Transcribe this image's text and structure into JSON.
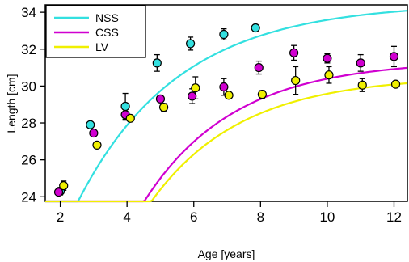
{
  "chart_data": {
    "type": "scatter",
    "xlabel": "Age [years]",
    "ylabel": "Length [cm]",
    "xlim": [
      1.55,
      12.4
    ],
    "ylim": [
      23.75,
      34.4
    ],
    "xticks": [
      2,
      4,
      6,
      8,
      10,
      12
    ],
    "yticks": [
      24,
      26,
      28,
      30,
      32,
      34
    ],
    "grid": false,
    "legend": {
      "placement": "top-left",
      "entries": [
        "NSS",
        "CSS",
        "LV"
      ]
    },
    "series": [
      {
        "name": "NSS",
        "color": "#33E0E0",
        "curve": {
          "model": "von Bertalanffy",
          "Linf": 34.5,
          "K": 0.33,
          "t0": -1.0
        },
        "points": [
          {
            "x": 2.0,
            "y": 24.3,
            "err": 0.2
          },
          {
            "x": 2.9,
            "y": 27.9,
            "err": 0.1
          },
          {
            "x": 3.95,
            "y": 28.9,
            "err": 0.7
          },
          {
            "x": 4.9,
            "y": 31.25,
            "err": 0.45
          },
          {
            "x": 5.9,
            "y": 32.3,
            "err": 0.35
          },
          {
            "x": 6.9,
            "y": 32.8,
            "err": 0.3
          },
          {
            "x": 7.85,
            "y": 33.15,
            "err": 0.1
          }
        ]
      },
      {
        "name": "CSS",
        "color": "#D000D0",
        "curve": {
          "model": "von Bertalanffy",
          "Linf": 31.4,
          "K": 0.37,
          "t0": 0.7
        },
        "points": [
          {
            "x": 1.95,
            "y": 24.25,
            "err": 0.15
          },
          {
            "x": 3.0,
            "y": 27.45,
            "err": 0.15
          },
          {
            "x": 3.95,
            "y": 28.45,
            "err": 0.3
          },
          {
            "x": 5.0,
            "y": 29.3,
            "err": 0.15
          },
          {
            "x": 5.95,
            "y": 29.45,
            "err": 0.4
          },
          {
            "x": 6.9,
            "y": 29.95,
            "err": 0.45
          },
          {
            "x": 7.95,
            "y": 31.0,
            "err": 0.35
          },
          {
            "x": 9.0,
            "y": 31.8,
            "err": 0.4
          },
          {
            "x": 10.0,
            "y": 31.5,
            "err": 0.25
          },
          {
            "x": 11.0,
            "y": 31.25,
            "err": 0.45
          },
          {
            "x": 12.0,
            "y": 31.6,
            "err": 0.55
          }
        ]
      },
      {
        "name": "LV",
        "color": "#F0F000",
        "curve": {
          "model": "von Bertalanffy",
          "Linf": 30.55,
          "K": 0.37,
          "t0": 0.67
        },
        "points": [
          {
            "x": 2.1,
            "y": 24.6,
            "err": 0.25
          },
          {
            "x": 3.1,
            "y": 26.8,
            "err": 0.15
          },
          {
            "x": 4.1,
            "y": 28.25,
            "err": 0.15
          },
          {
            "x": 5.1,
            "y": 28.85,
            "err": 0.2
          },
          {
            "x": 6.05,
            "y": 29.9,
            "err": 0.6
          },
          {
            "x": 7.05,
            "y": 29.5,
            "err": 0.15
          },
          {
            "x": 8.05,
            "y": 29.55,
            "err": 0.2
          },
          {
            "x": 9.05,
            "y": 30.3,
            "err": 0.75
          },
          {
            "x": 10.05,
            "y": 30.6,
            "err": 0.45
          },
          {
            "x": 11.05,
            "y": 30.05,
            "err": 0.35
          },
          {
            "x": 12.05,
            "y": 30.1,
            "err": 0.15
          }
        ]
      }
    ]
  }
}
